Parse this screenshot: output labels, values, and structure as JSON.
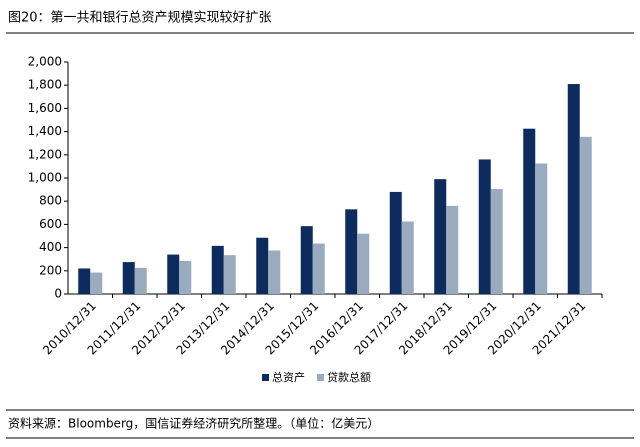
{
  "chart_data": {
    "type": "bar",
    "title": "图20：第一共和银行总资产规模实现较好扩张",
    "source": "资料来源：Bloomberg，国信证券经济研究所整理。（单位：亿美元）",
    "categories": [
      "2010/12/31",
      "2011/12/31",
      "2012/12/31",
      "2013/12/31",
      "2014/12/31",
      "2015/12/31",
      "2016/12/31",
      "2017/12/31",
      "2018/12/31",
      "2019/12/31",
      "2020/12/31",
      "2021/12/31"
    ],
    "series": [
      {
        "name": "总资产",
        "color": "#0d2b5c",
        "values": [
          220,
          275,
          340,
          415,
          485,
          585,
          730,
          880,
          990,
          1160,
          1425,
          1810
        ]
      },
      {
        "name": "贷款总额",
        "color": "#9aabbf",
        "values": [
          185,
          225,
          285,
          335,
          375,
          435,
          520,
          625,
          760,
          905,
          1125,
          1355
        ]
      }
    ],
    "ylim": [
      0,
      2000
    ],
    "yticks": [
      0,
      200,
      400,
      600,
      800,
      {
        "value": 1000,
        "label": "1,000"
      },
      {
        "value": 1200,
        "label": "1,200"
      },
      {
        "value": 1400,
        "label": "1,400"
      },
      {
        "value": 1600,
        "label": "1,600"
      },
      {
        "value": 1800,
        "label": "1,800"
      },
      {
        "value": 2000,
        "label": "2,000"
      }
    ],
    "legend": "bottom"
  }
}
